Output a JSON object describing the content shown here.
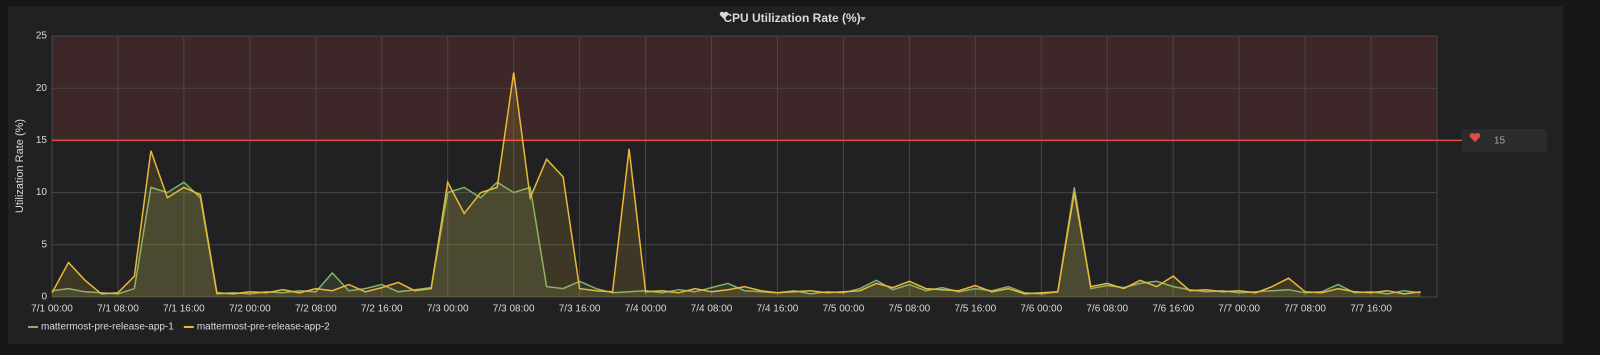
{
  "chart_data": {
    "type": "line",
    "title": "CPU Utilization Rate (%)",
    "y_label": "Utilization Rate (%)",
    "x": [
      "7/1 00:00",
      "7/1 02:00",
      "7/1 04:00",
      "7/1 06:00",
      "7/1 08:00",
      "7/1 10:00",
      "7/1 12:00",
      "7/1 14:00",
      "7/1 16:00",
      "7/1 18:00",
      "7/1 20:00",
      "7/1 22:00",
      "7/2 00:00",
      "7/2 02:00",
      "7/2 04:00",
      "7/2 06:00",
      "7/2 08:00",
      "7/2 10:00",
      "7/2 12:00",
      "7/2 14:00",
      "7/2 16:00",
      "7/2 18:00",
      "7/2 20:00",
      "7/2 22:00",
      "7/3 00:00",
      "7/3 02:00",
      "7/3 04:00",
      "7/3 06:00",
      "7/3 08:00",
      "7/3 10:00",
      "7/3 12:00",
      "7/3 14:00",
      "7/3 16:00",
      "7/3 18:00",
      "7/3 20:00",
      "7/3 22:00",
      "7/4 00:00",
      "7/4 02:00",
      "7/4 04:00",
      "7/4 06:00",
      "7/4 08:00",
      "7/4 10:00",
      "7/4 12:00",
      "7/4 14:00",
      "7/4 16:00",
      "7/4 18:00",
      "7/4 20:00",
      "7/4 22:00",
      "7/5 00:00",
      "7/5 02:00",
      "7/5 04:00",
      "7/5 06:00",
      "7/5 08:00",
      "7/5 10:00",
      "7/5 12:00",
      "7/5 14:00",
      "7/5 16:00",
      "7/5 18:00",
      "7/5 20:00",
      "7/5 22:00",
      "7/6 00:00",
      "7/6 02:00",
      "7/6 04:00",
      "7/6 06:00",
      "7/6 08:00",
      "7/6 10:00",
      "7/6 12:00",
      "7/6 14:00",
      "7/6 16:00",
      "7/6 18:00",
      "7/6 20:00",
      "7/6 22:00",
      "7/7 00:00",
      "7/7 02:00",
      "7/7 04:00",
      "7/7 06:00",
      "7/7 08:00",
      "7/7 10:00",
      "7/7 12:00",
      "7/7 14:00",
      "7/7 16:00",
      "7/7 18:00",
      "7/7 20:00",
      "7/7 22:00"
    ],
    "xticks": [
      "7/1 00:00",
      "7/1 08:00",
      "7/1 16:00",
      "7/2 00:00",
      "7/2 08:00",
      "7/2 16:00",
      "7/3 00:00",
      "7/3 08:00",
      "7/3 16:00",
      "7/4 00:00",
      "7/4 08:00",
      "7/4 16:00",
      "7/5 00:00",
      "7/5 08:00",
      "7/5 16:00",
      "7/6 00:00",
      "7/6 08:00",
      "7/6 16:00",
      "7/7 00:00",
      "7/7 08:00",
      "7/7 16:00"
    ],
    "series": [
      {
        "name": "mattermost-pre-release-app-1",
        "color": "#7eb26d",
        "values": [
          0.6,
          0.8,
          0.5,
          0.4,
          0.3,
          0.8,
          10.5,
          10,
          11,
          9.5,
          0.3,
          0.4,
          0.3,
          0.5,
          0.4,
          0.6,
          0.5,
          2.3,
          0.6,
          0.8,
          1.2,
          0.5,
          0.7,
          0.9,
          10,
          10.5,
          9.5,
          11,
          10,
          10.5,
          1.0,
          0.8,
          1.5,
          0.8,
          0.4,
          0.5,
          0.6,
          0.4,
          0.7,
          0.5,
          0.9,
          1.3,
          0.6,
          0.5,
          0.4,
          0.6,
          0.3,
          0.5,
          0.4,
          0.8,
          1.6,
          0.7,
          1.2,
          0.6,
          0.9,
          0.5,
          0.8,
          0.6,
          1.0,
          0.4,
          0.3,
          0.5,
          10.5,
          0.8,
          1.1,
          0.9,
          1.3,
          1.5,
          1.0,
          0.7,
          0.5,
          0.6,
          0.4,
          0.5,
          0.6,
          0.7,
          0.4,
          0.5,
          1.2,
          0.4,
          0.5,
          0.3,
          0.6,
          0.4
        ]
      },
      {
        "name": "mattermost-pre-release-app-2",
        "color": "#eab839",
        "values": [
          0.4,
          3.3,
          1.6,
          0.3,
          0.4,
          2.0,
          14,
          9.5,
          10.5,
          9.8,
          0.4,
          0.3,
          0.5,
          0.4,
          0.7,
          0.4,
          0.8,
          0.6,
          1.2,
          0.5,
          0.9,
          1.4,
          0.6,
          0.8,
          11,
          8,
          10,
          10.5,
          21.5,
          9.5,
          13.2,
          11.5,
          0.8,
          0.6,
          0.5,
          14.2,
          0.5,
          0.6,
          0.4,
          0.8,
          0.5,
          0.7,
          1.0,
          0.6,
          0.4,
          0.5,
          0.6,
          0.4,
          0.5,
          0.6,
          1.3,
          0.9,
          1.5,
          0.8,
          0.7,
          0.6,
          1.1,
          0.5,
          0.8,
          0.3,
          0.4,
          0.5,
          10,
          1.0,
          1.3,
          0.8,
          1.6,
          1.0,
          2.0,
          0.6,
          0.7,
          0.5,
          0.6,
          0.4,
          1.0,
          1.8,
          0.5,
          0.4,
          0.8,
          0.5,
          0.4,
          0.6,
          0.3,
          0.5
        ]
      }
    ],
    "ylim": [
      0,
      25
    ],
    "yticks": [
      0,
      5,
      10,
      15,
      20,
      25
    ],
    "grid": true,
    "fill": true,
    "threshold": 15,
    "threshold_color": "#e24d42",
    "legend": "bottom-left"
  }
}
